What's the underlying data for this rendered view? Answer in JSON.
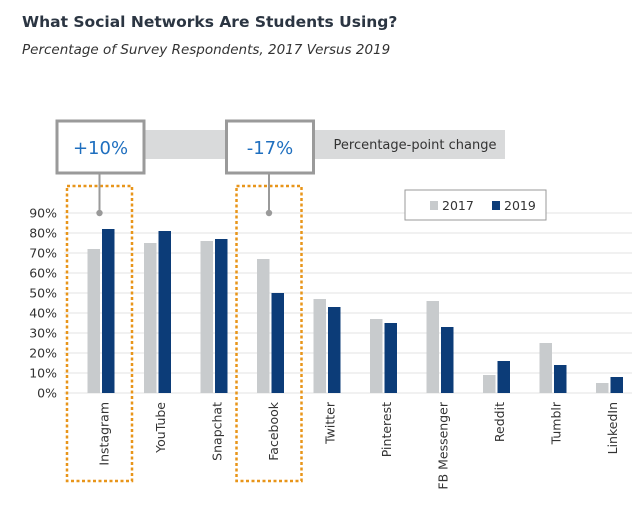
{
  "header": {
    "title": "What Social Networks Are Students Using?",
    "subtitle": "Percentage of Survey Respondents, 2017 Versus 2019"
  },
  "colors": {
    "series_2017": "#c8cbcd",
    "series_2019": "#0c3c78",
    "highlight_box": "#e8951a",
    "band": "#d9dadb",
    "callout_border": "#9a9a9a",
    "callout_text": "#1f6fbf",
    "grid": "#e3e3e3"
  },
  "chart_data": {
    "type": "bar",
    "title": "What Social Networks Are Students Using?",
    "subtitle": "Percentage of Survey Respondents, 2017 Versus 2019",
    "categories": [
      "Instagram",
      "YouTube",
      "Snapchat",
      "Facebook",
      "Twitter",
      "Pinterest",
      "FB Messenger",
      "Reddit",
      "Tumblr",
      "LinkedIn"
    ],
    "series": [
      {
        "name": "2017",
        "values": [
          72,
          75,
          76,
          67,
          47,
          37,
          46,
          9,
          25,
          5
        ]
      },
      {
        "name": "2019",
        "values": [
          82,
          81,
          77,
          50,
          43,
          35,
          33,
          16,
          14,
          8
        ]
      }
    ],
    "ylim": [
      0,
      90
    ],
    "yticks": [
      "0%",
      "10%",
      "20%",
      "30%",
      "40%",
      "50%",
      "60%",
      "70%",
      "80%",
      "90%"
    ],
    "ytick_values": [
      0,
      10,
      20,
      30,
      40,
      50,
      60,
      70,
      80,
      90
    ],
    "grid": true,
    "legend": {
      "placement": "top-right",
      "entries": [
        "2017",
        "2019"
      ]
    },
    "annotations": {
      "band_label": "Percentage-point change",
      "callouts": [
        {
          "category": "Instagram",
          "label": "+10%"
        },
        {
          "category": "Facebook",
          "label": "-17%"
        }
      ],
      "highlighted_categories": [
        "Instagram",
        "Facebook"
      ]
    }
  }
}
